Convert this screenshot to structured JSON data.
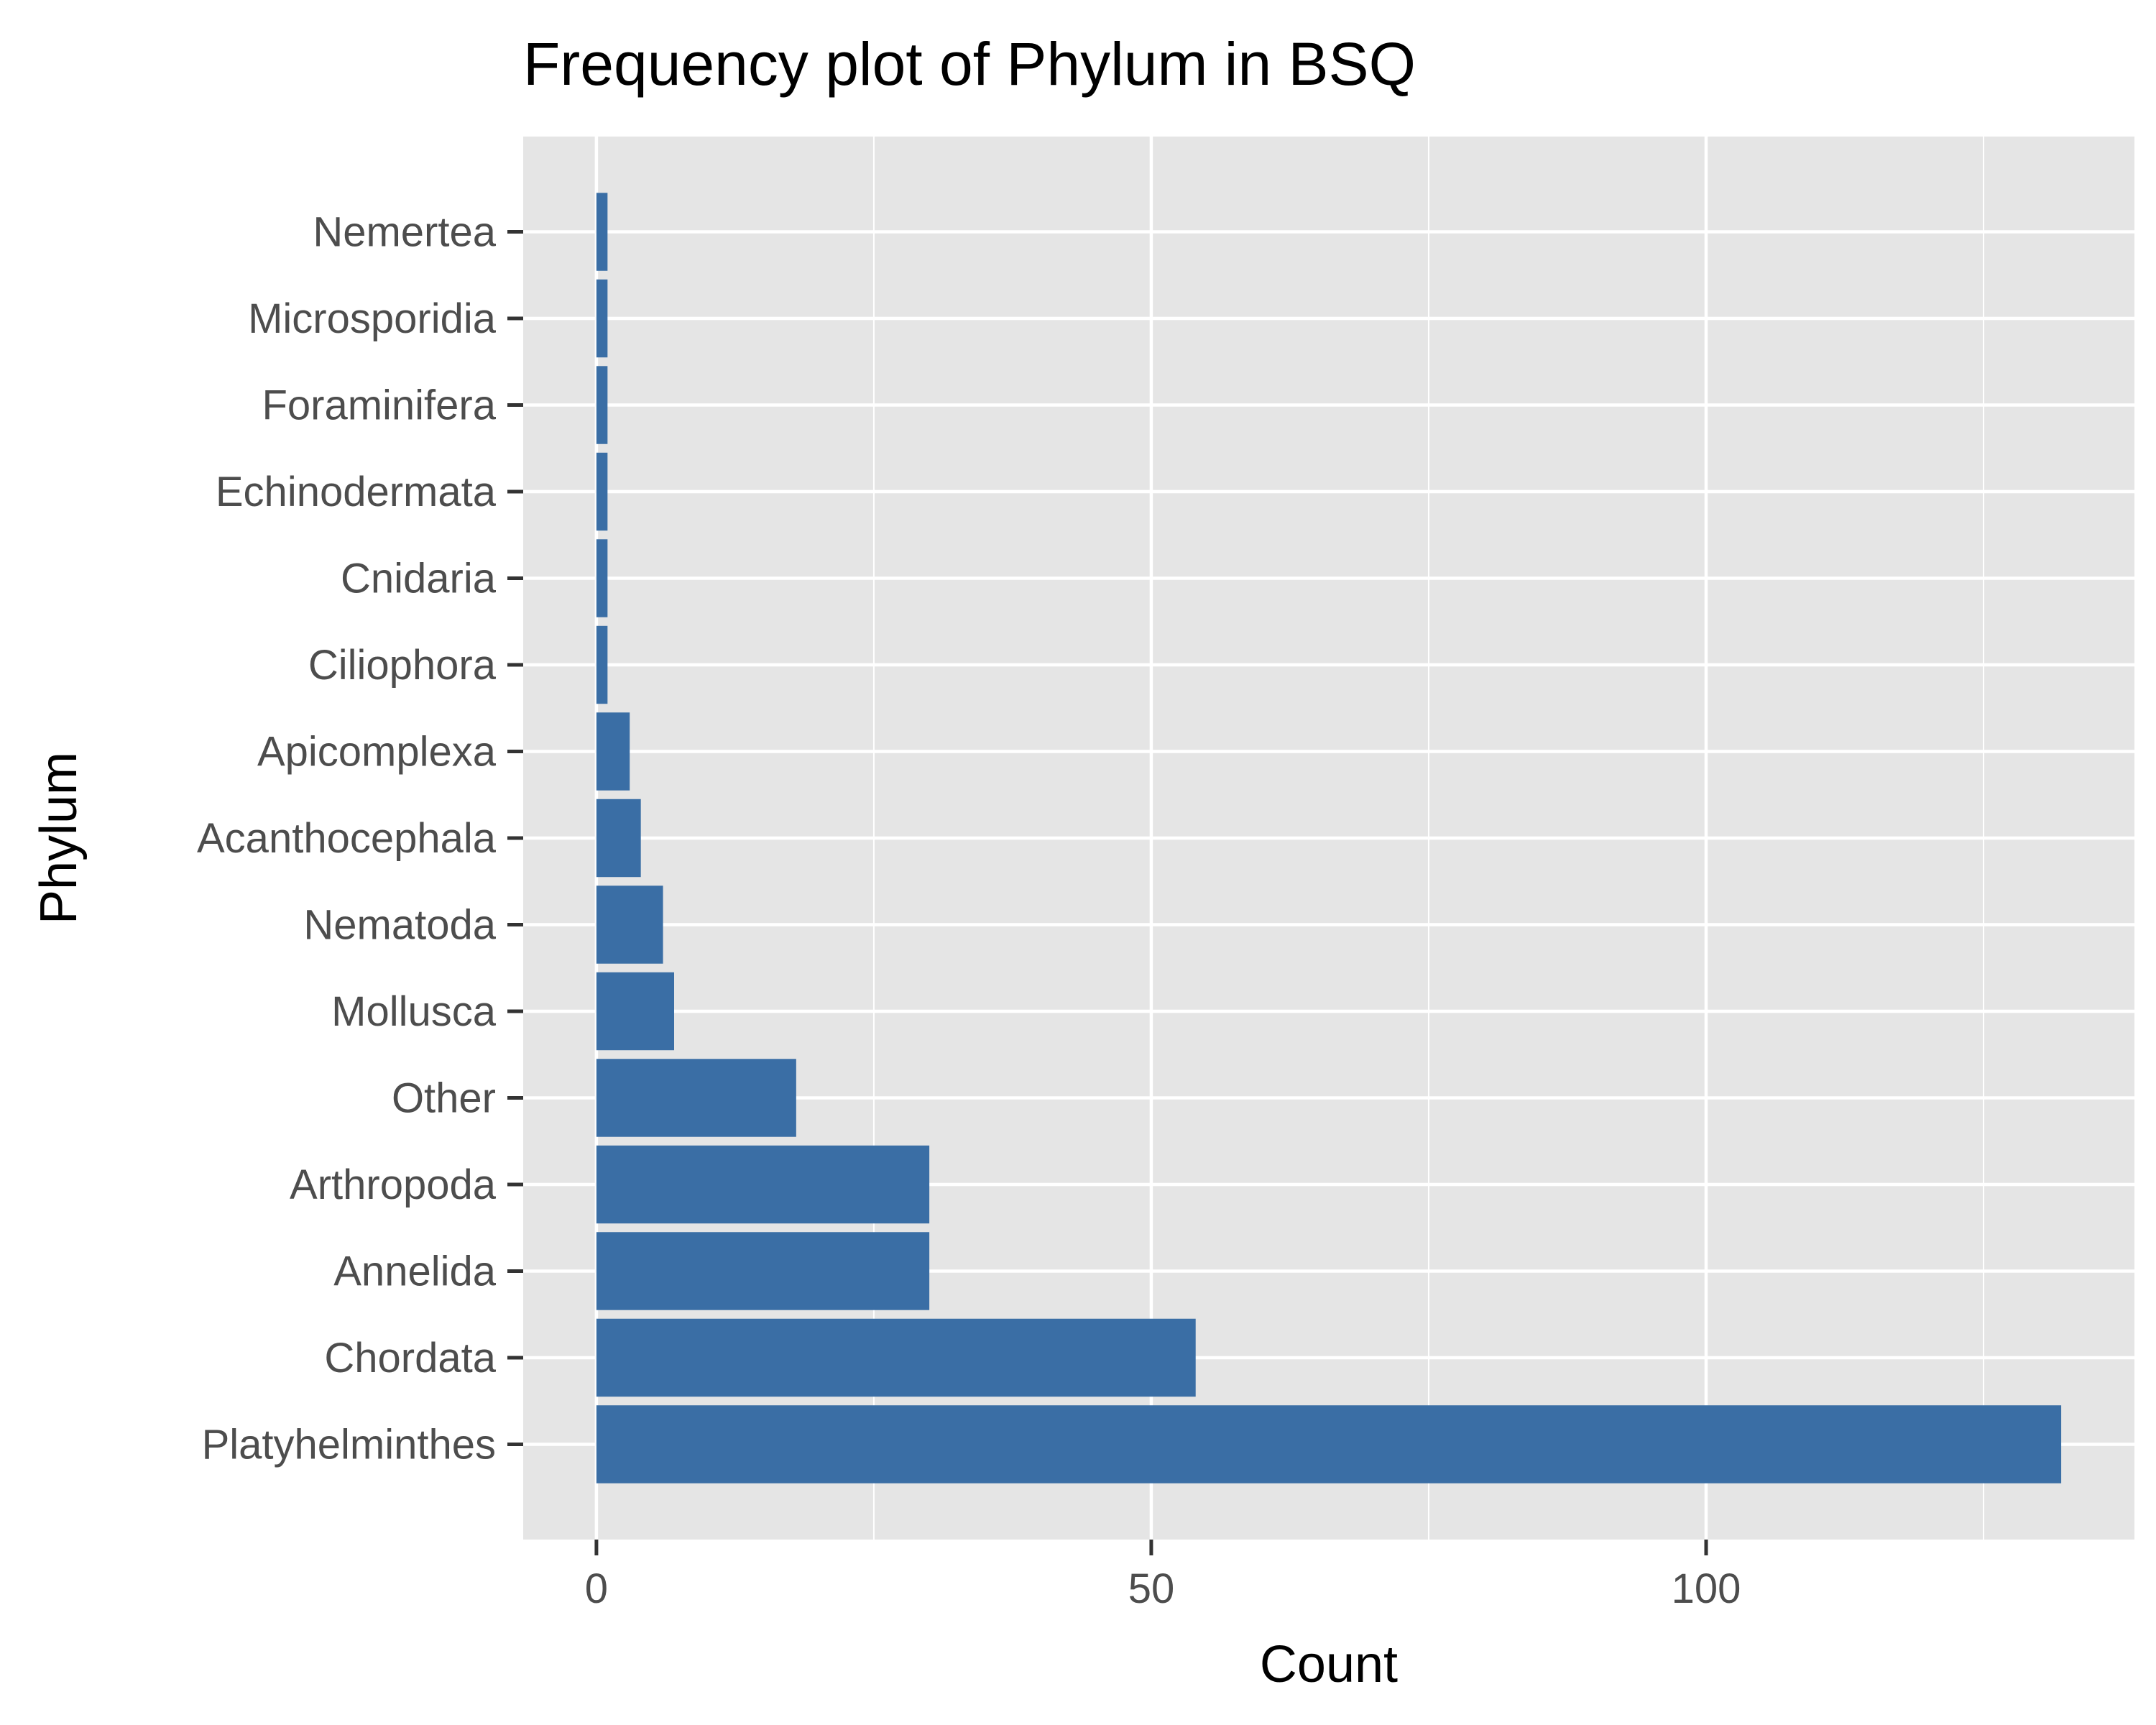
{
  "chart_data": {
    "type": "bar",
    "orientation": "horizontal",
    "title": "Frequency plot of Phylum in BSQ",
    "xlabel": "Count",
    "ylabel": "Phylum",
    "categories": [
      "Platyhelminthes",
      "Chordata",
      "Annelida",
      "Arthropoda",
      "Other",
      "Mollusca",
      "Nematoda",
      "Acanthocephala",
      "Apicomplexa",
      "Ciliophora",
      "Cnidaria",
      "Echinodermata",
      "Foraminifera",
      "Microsporidia",
      "Nemertea"
    ],
    "values": [
      132,
      54,
      30,
      30,
      18,
      7,
      6,
      4,
      3,
      1,
      1,
      1,
      1,
      1,
      1
    ],
    "xlim": [
      -6.6,
      138.6
    ],
    "xticks": [
      0,
      50,
      100
    ],
    "x_minor_ticks": [
      25,
      75,
      125
    ],
    "grid": true,
    "legend": "none",
    "colors": {
      "bar": "#3a6ea5",
      "panel": "#e5e5e5",
      "grid": "#ffffff",
      "tick_text": "#4d4d4d",
      "axis_tick": "#333333"
    }
  }
}
